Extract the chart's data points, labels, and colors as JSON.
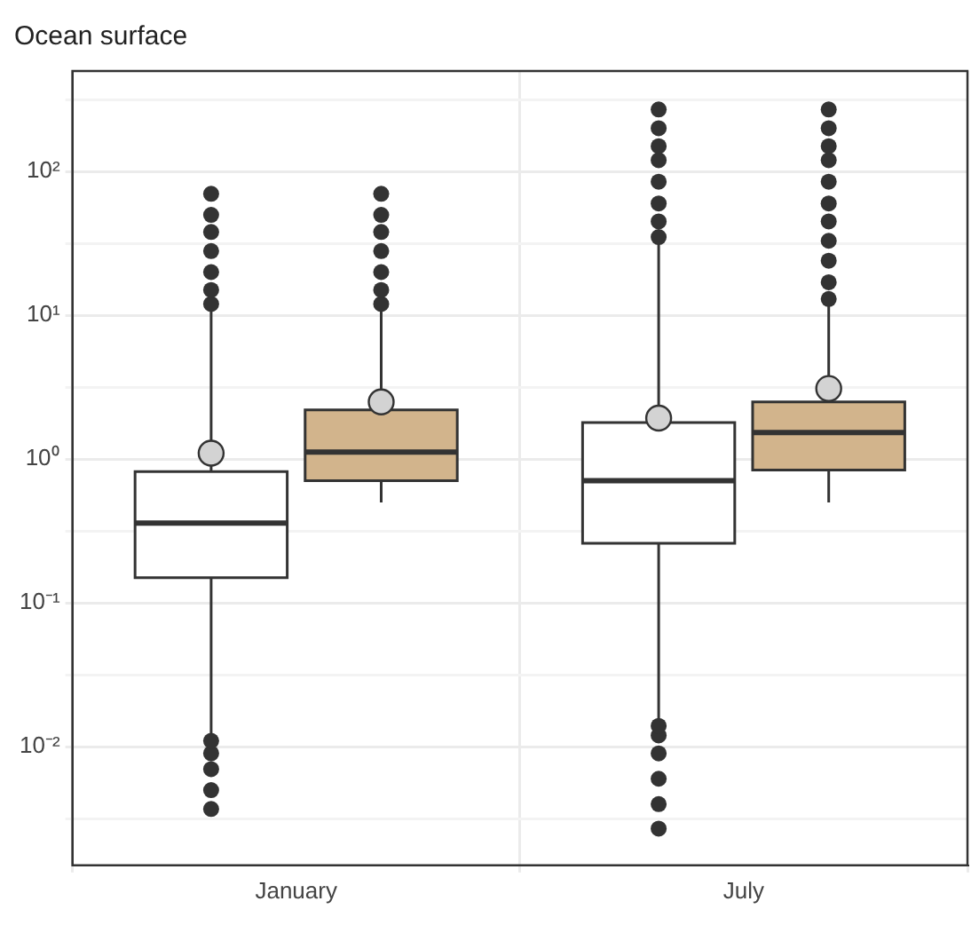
{
  "chart_data": {
    "type": "box",
    "title": "Ocean surface",
    "categories": [
      "January",
      "July"
    ],
    "series": [
      {
        "color": "#ffffff",
        "boxes": [
          {
            "low": 0.0115,
            "q1": 0.15,
            "median": 0.36,
            "q3": 0.82,
            "high": 11,
            "mean": 1.1,
            "outliers": [
              0.0037,
              0.005,
              0.007,
              0.009,
              0.011,
              12,
              15,
              20,
              28,
              38,
              50,
              70
            ]
          },
          {
            "low": 0.015,
            "q1": 0.26,
            "median": 0.71,
            "q3": 1.8,
            "high": 32,
            "mean": 1.93,
            "outliers": [
              0.0027,
              0.004,
              0.006,
              0.009,
              0.012,
              0.014,
              35,
              45,
              60,
              85,
              120,
              150,
              200,
              270
            ]
          }
        ]
      },
      {
        "color": "#d2b48c",
        "boxes": [
          {
            "low": 0.5,
            "q1": 0.71,
            "median": 1.12,
            "q3": 2.2,
            "high": 11,
            "mean": 2.5,
            "outliers": [
              12,
              15,
              20,
              28,
              38,
              50,
              70
            ]
          },
          {
            "low": 0.5,
            "q1": 0.84,
            "median": 1.53,
            "q3": 2.5,
            "high": 11.7,
            "mean": 3.1,
            "outliers": [
              13,
              17,
              24,
              33,
              45,
              60,
              85,
              120,
              150,
              200,
              270
            ]
          }
        ]
      }
    ],
    "log": "y",
    "ylim": [
      0.0015,
      500
    ],
    "yticks": [
      {
        "value": 0.00316,
        "label": null
      },
      {
        "value": 0.01,
        "label": "10⁻²"
      },
      {
        "value": 0.0316,
        "label": null
      },
      {
        "value": 0.1,
        "label": "10⁻¹"
      },
      {
        "value": 0.316,
        "label": null
      },
      {
        "value": 1,
        "label": "10⁰"
      },
      {
        "value": 3.16,
        "label": null
      },
      {
        "value": 10,
        "label": "10¹"
      },
      {
        "value": 31.6,
        "label": null
      },
      {
        "value": 100,
        "label": "10²"
      },
      {
        "value": 316,
        "label": null
      }
    ],
    "grid": true
  }
}
